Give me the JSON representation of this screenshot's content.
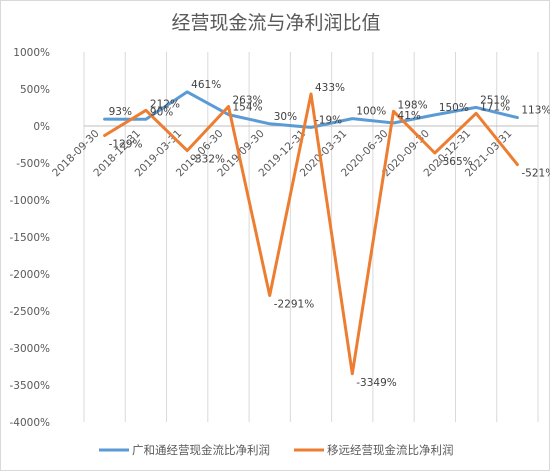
{
  "chart_data": {
    "type": "line",
    "title": "经营现金流与净利润比值",
    "categories": [
      "2018-09-30",
      "2018-12-31",
      "2019-03-31",
      "2019-06-30",
      "2019-09-30",
      "2019-12-31",
      "2020-03-31",
      "2020-06-30",
      "2020-09-30",
      "2020-12-31",
      "2021-03-31"
    ],
    "y_ticks": [
      "1000%",
      "500%",
      "0%",
      "-500%",
      "-1000%",
      "-1500%",
      "-2000%",
      "-2500%",
      "-3000%",
      "-3500%",
      "-4000%"
    ],
    "ylim": [
      -4000,
      1000
    ],
    "y_unit": "%",
    "grid": "vertical",
    "legend_position": "bottom",
    "series": [
      {
        "name": "广和通经营现金流比净利润",
        "color": "#5b9bd5",
        "values": [
          93,
          90,
          461,
          154,
          30,
          -19,
          100,
          41,
          150,
          251,
          113
        ],
        "labels": [
          "93%",
          "90%",
          "461%",
          "154%",
          "30%",
          "-19%",
          "100%",
          "41%",
          "150%",
          "251%",
          "113%"
        ]
      },
      {
        "name": "移远经营现金流比净利润",
        "color": "#ed7d31",
        "values": [
          -129,
          212,
          -332,
          263,
          -2291,
          433,
          -3349,
          198,
          -365,
          171,
          -521
        ],
        "labels": [
          "-129%",
          "212%",
          "-332%",
          "263%",
          "-2291%",
          "433%",
          "-3349%",
          "198%",
          "-365%",
          "171%",
          "-521%"
        ]
      }
    ]
  }
}
